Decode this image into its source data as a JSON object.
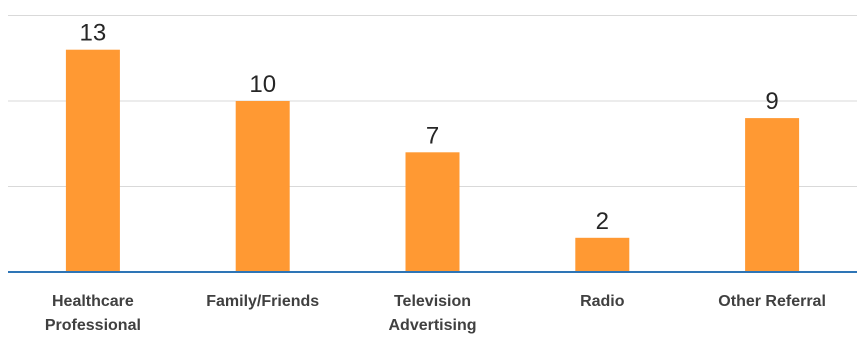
{
  "chart_data": {
    "type": "bar",
    "categories": [
      "Healthcare Professional",
      "Family/Friends",
      "Television Advertising",
      "Radio",
      "Other Referral"
    ],
    "category_lines": [
      [
        "Healthcare",
        "Professional"
      ],
      [
        "Family/Friends"
      ],
      [
        "Television",
        "Advertising"
      ],
      [
        "Radio"
      ],
      [
        "Other Referral"
      ]
    ],
    "values": [
      13,
      10,
      7,
      2,
      9
    ],
    "data_labels": [
      "13",
      "10",
      "7",
      "2",
      "9"
    ],
    "ylim": [
      0,
      15
    ],
    "gridlines": [
      5,
      10,
      15
    ],
    "grid": true,
    "bar_color": "#ff9933",
    "axis_color": "#2e75b6",
    "grid_color": "#d9d9d9"
  }
}
